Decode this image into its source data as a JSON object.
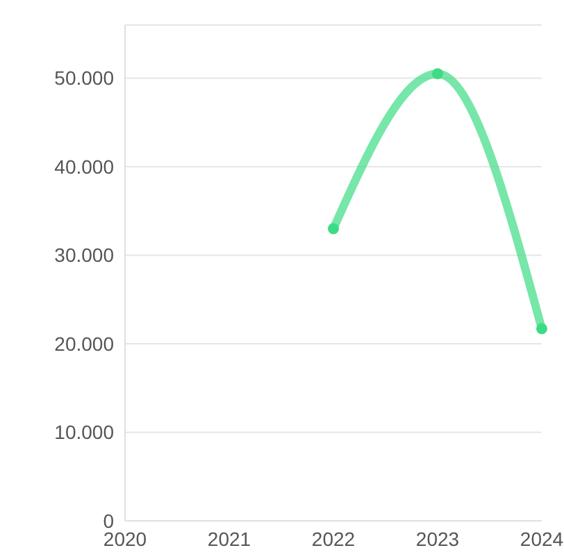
{
  "chart_data": {
    "type": "line",
    "categories": [
      "2020",
      "2021",
      "2022",
      "2023",
      "2024"
    ],
    "series": [
      {
        "color": "#3ddc84",
        "values": [
          null,
          null,
          33000,
          50500,
          21700
        ]
      }
    ],
    "ylim": [
      0,
      56000
    ],
    "yticks": [
      0,
      {
        "value": 10000,
        "label": "10.000"
      },
      {
        "value": 20000,
        "label": "20.000"
      },
      {
        "value": 30000,
        "label": "30.000"
      },
      {
        "value": 40000,
        "label": "40.000"
      },
      {
        "value": 50000,
        "label": "50.000"
      }
    ],
    "grid": "y",
    "marker": "circle",
    "legend": false
  }
}
